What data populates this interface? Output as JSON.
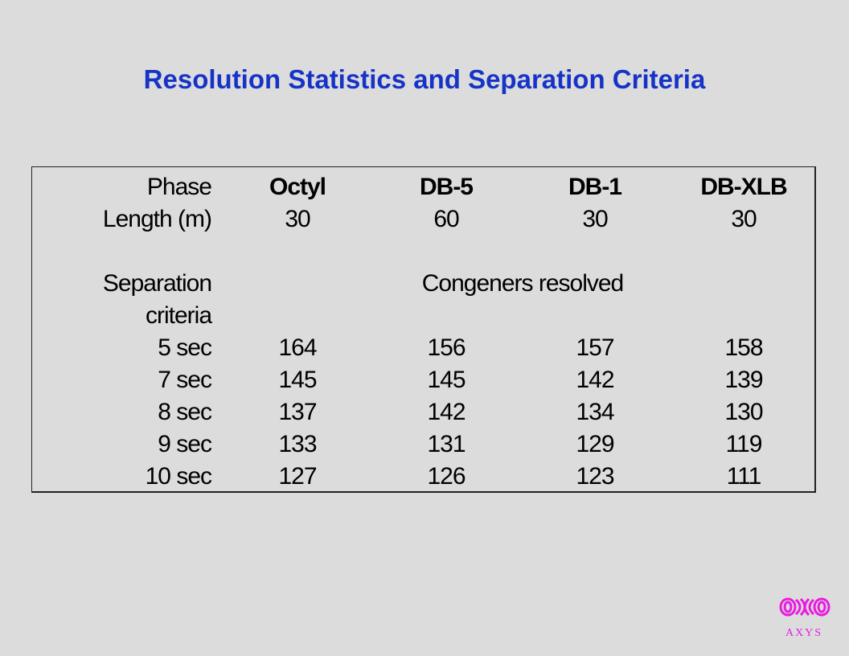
{
  "title": "Resolution Statistics and Separation Criteria",
  "table": {
    "phase_label": "Phase",
    "length_label": "Length (m)",
    "columns": [
      {
        "phase": "Octyl",
        "length": "30"
      },
      {
        "phase": "DB-5",
        "length": "60"
      },
      {
        "phase": "DB-1",
        "length": "30"
      },
      {
        "phase": "DB-XLB",
        "length": "30"
      }
    ],
    "section_label_line1": "Separation",
    "section_label_line2": "criteria",
    "section_value_label": "Congeners resolved",
    "rows": [
      {
        "label": "5 sec",
        "values": [
          "164",
          "156",
          "157",
          "158"
        ]
      },
      {
        "label": "7 sec",
        "values": [
          "145",
          "145",
          "142",
          "139"
        ]
      },
      {
        "label": "8 sec",
        "values": [
          "137",
          "142",
          "134",
          "130"
        ]
      },
      {
        "label": "9 sec",
        "values": [
          "133",
          "131",
          "129",
          "119"
        ]
      },
      {
        "label": "10 sec",
        "values": [
          "127",
          "126",
          "123",
          "111"
        ]
      }
    ]
  },
  "logo": {
    "text": "AXYS",
    "color": "#e81ce0"
  },
  "colors": {
    "title": "#1633c8",
    "background": "#dcdcdc"
  }
}
